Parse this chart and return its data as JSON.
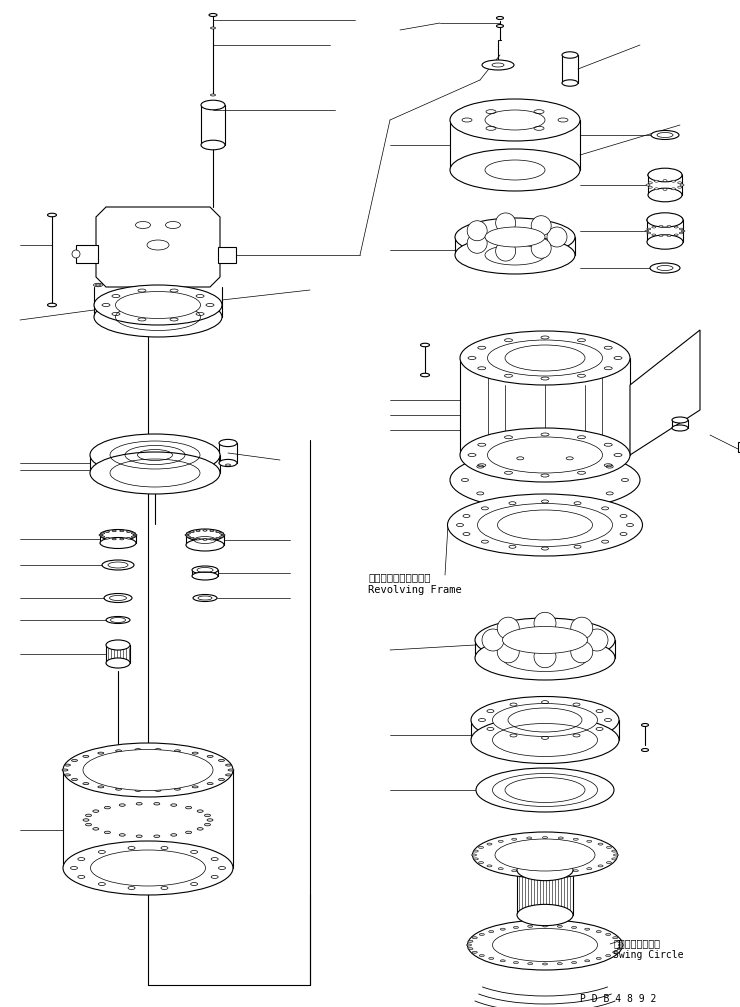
{
  "background_color": "#ffffff",
  "line_color": "#000000",
  "fig_width": 7.4,
  "fig_height": 10.07,
  "dpi": 100,
  "label_revolving_jp": "レボルビングフレーム",
  "label_revolving_en": "Revolving Frame",
  "label_swing_jp": "スイングサークル",
  "label_swing_en": "Swing Circle",
  "label_pdb": "P D B 4 8 9 2",
  "font_size_label": 7.5,
  "font_size_pdb": 7
}
